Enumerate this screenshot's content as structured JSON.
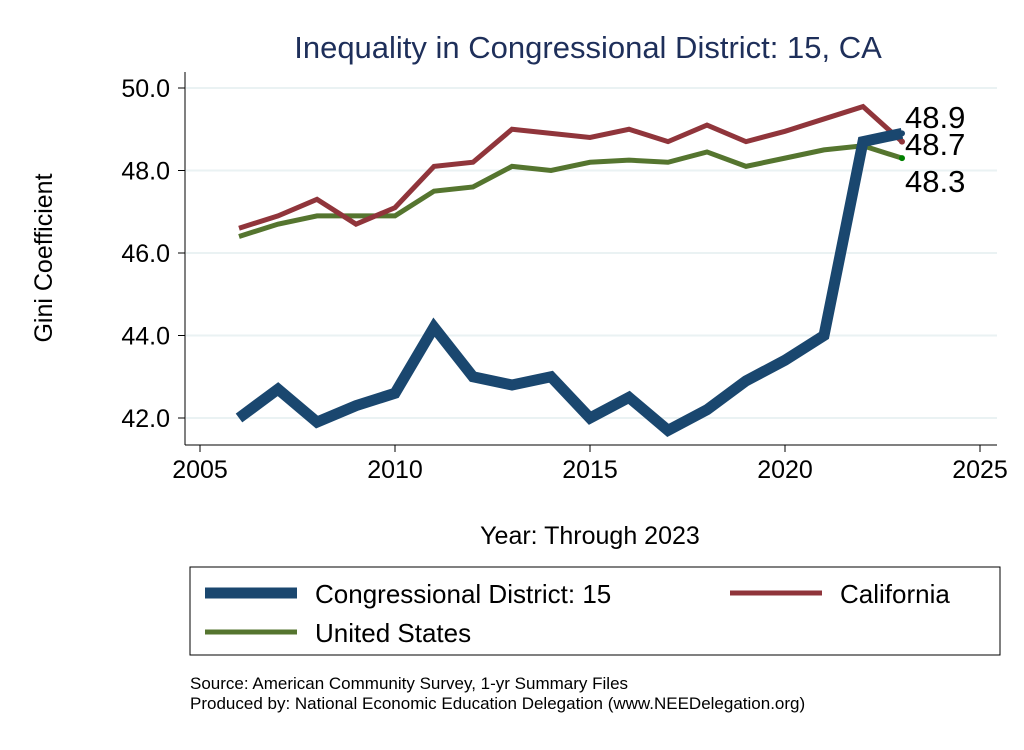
{
  "chart_data": {
    "type": "line",
    "title": "Inequality in Congressional District:  15, CA",
    "xlabel": "Year: Through 2023",
    "ylabel": "Gini Coefficient",
    "xlim": [
      2005,
      2025
    ],
    "ylim": [
      42,
      50
    ],
    "xticks": [
      "2005",
      "2010",
      "2015",
      "2020",
      "2025"
    ],
    "yticks": [
      "42.0",
      "44.0",
      "46.0",
      "48.0",
      "50.0"
    ],
    "grid": true,
    "legend_position": "bottom",
    "x": [
      2006,
      2007,
      2008,
      2009,
      2010,
      2011,
      2012,
      2013,
      2014,
      2015,
      2016,
      2017,
      2018,
      2019,
      2020,
      2021,
      2022,
      2023
    ],
    "series": [
      {
        "name": "Congressional District:  15",
        "color": "#1a476f",
        "end_label": "48.9",
        "values": [
          42.0,
          42.7,
          41.9,
          42.3,
          42.6,
          44.2,
          43.0,
          42.8,
          43.0,
          42.0,
          42.5,
          41.7,
          42.2,
          42.9,
          43.4,
          44.0,
          48.7,
          48.9
        ]
      },
      {
        "name": "California",
        "color": "#90353b",
        "end_label": "48.7",
        "values": [
          46.6,
          46.9,
          47.3,
          46.7,
          47.1,
          48.1,
          48.2,
          49.0,
          48.9,
          48.8,
          49.0,
          48.7,
          49.1,
          48.7,
          48.95,
          49.25,
          49.55,
          48.7
        ]
      },
      {
        "name": "United States",
        "color": "#55752f",
        "end_label": "48.3",
        "values": [
          46.4,
          46.7,
          46.9,
          46.9,
          46.9,
          47.5,
          47.6,
          48.1,
          48.0,
          48.2,
          48.25,
          48.2,
          48.45,
          48.1,
          48.3,
          48.5,
          48.6,
          48.3
        ]
      }
    ],
    "notes": [
      "Source: American Community Survey, 1-yr Summary Files",
      "Produced by: National Economic Education Delegation (www.NEEDelegation.org)"
    ]
  }
}
